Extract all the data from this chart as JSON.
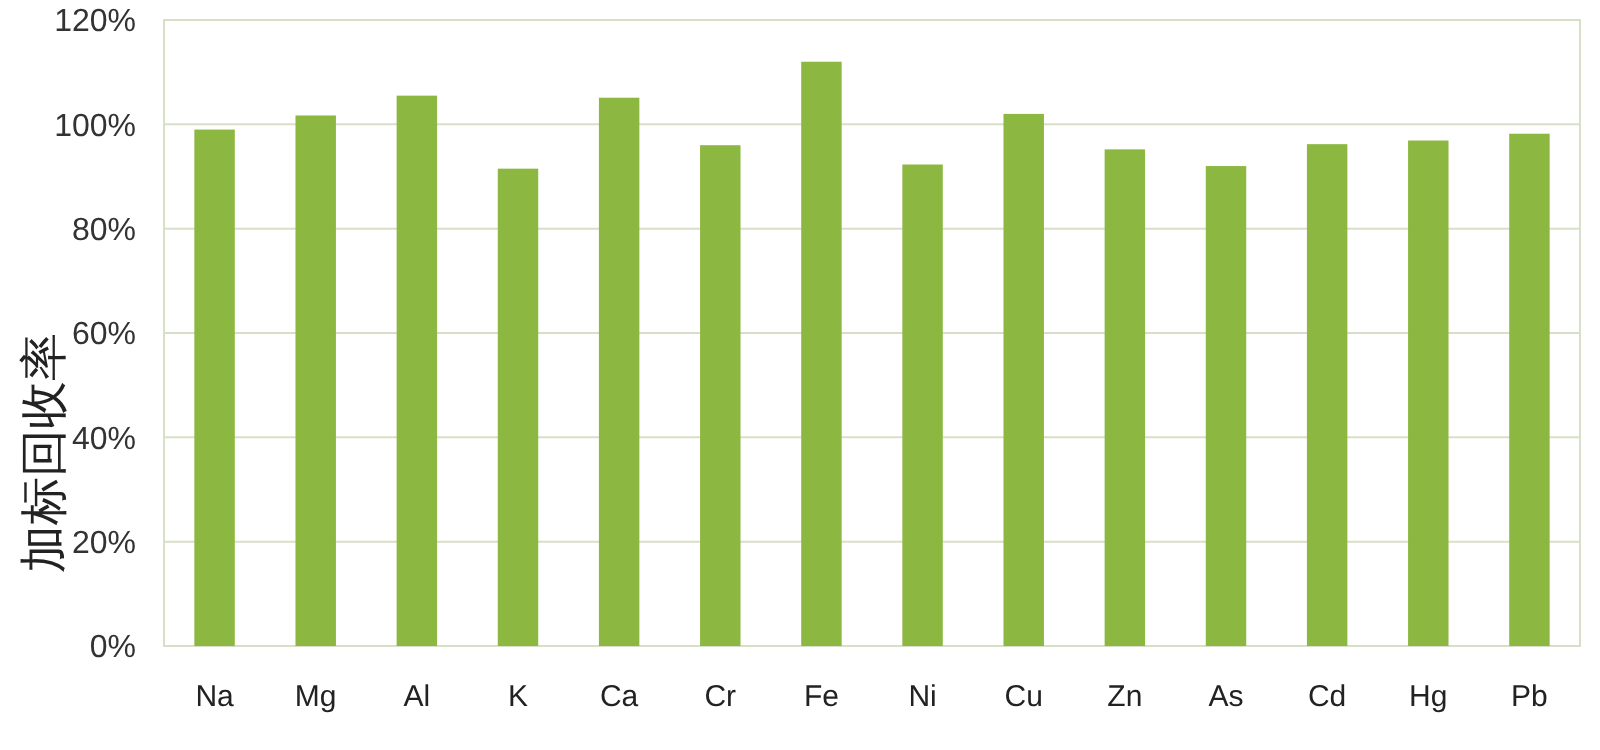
{
  "chart_data": {
    "type": "bar",
    "ylabel": "加标回收率",
    "categories": [
      "Na",
      "Mg",
      "Al",
      "K",
      "Ca",
      "Cr",
      "Fe",
      "Ni",
      "Cu",
      "Zn",
      "As",
      "Cd",
      "Hg",
      "Pb"
    ],
    "values": [
      99,
      101.7,
      105.5,
      91.5,
      105.1,
      96,
      112,
      92.3,
      102,
      95.2,
      92,
      96.2,
      96.9,
      98.2
    ],
    "color": "#8cb842",
    "ylim": [
      0,
      120
    ],
    "yticks": [
      {
        "value": 0,
        "label": "0%"
      },
      {
        "value": 20,
        "label": "20%"
      },
      {
        "value": 40,
        "label": "40%"
      },
      {
        "value": 60,
        "label": "60%"
      },
      {
        "value": 80,
        "label": "80%"
      },
      {
        "value": 100,
        "label": "100%"
      },
      {
        "value": 120,
        "label": "120%"
      }
    ],
    "grid": "y"
  }
}
